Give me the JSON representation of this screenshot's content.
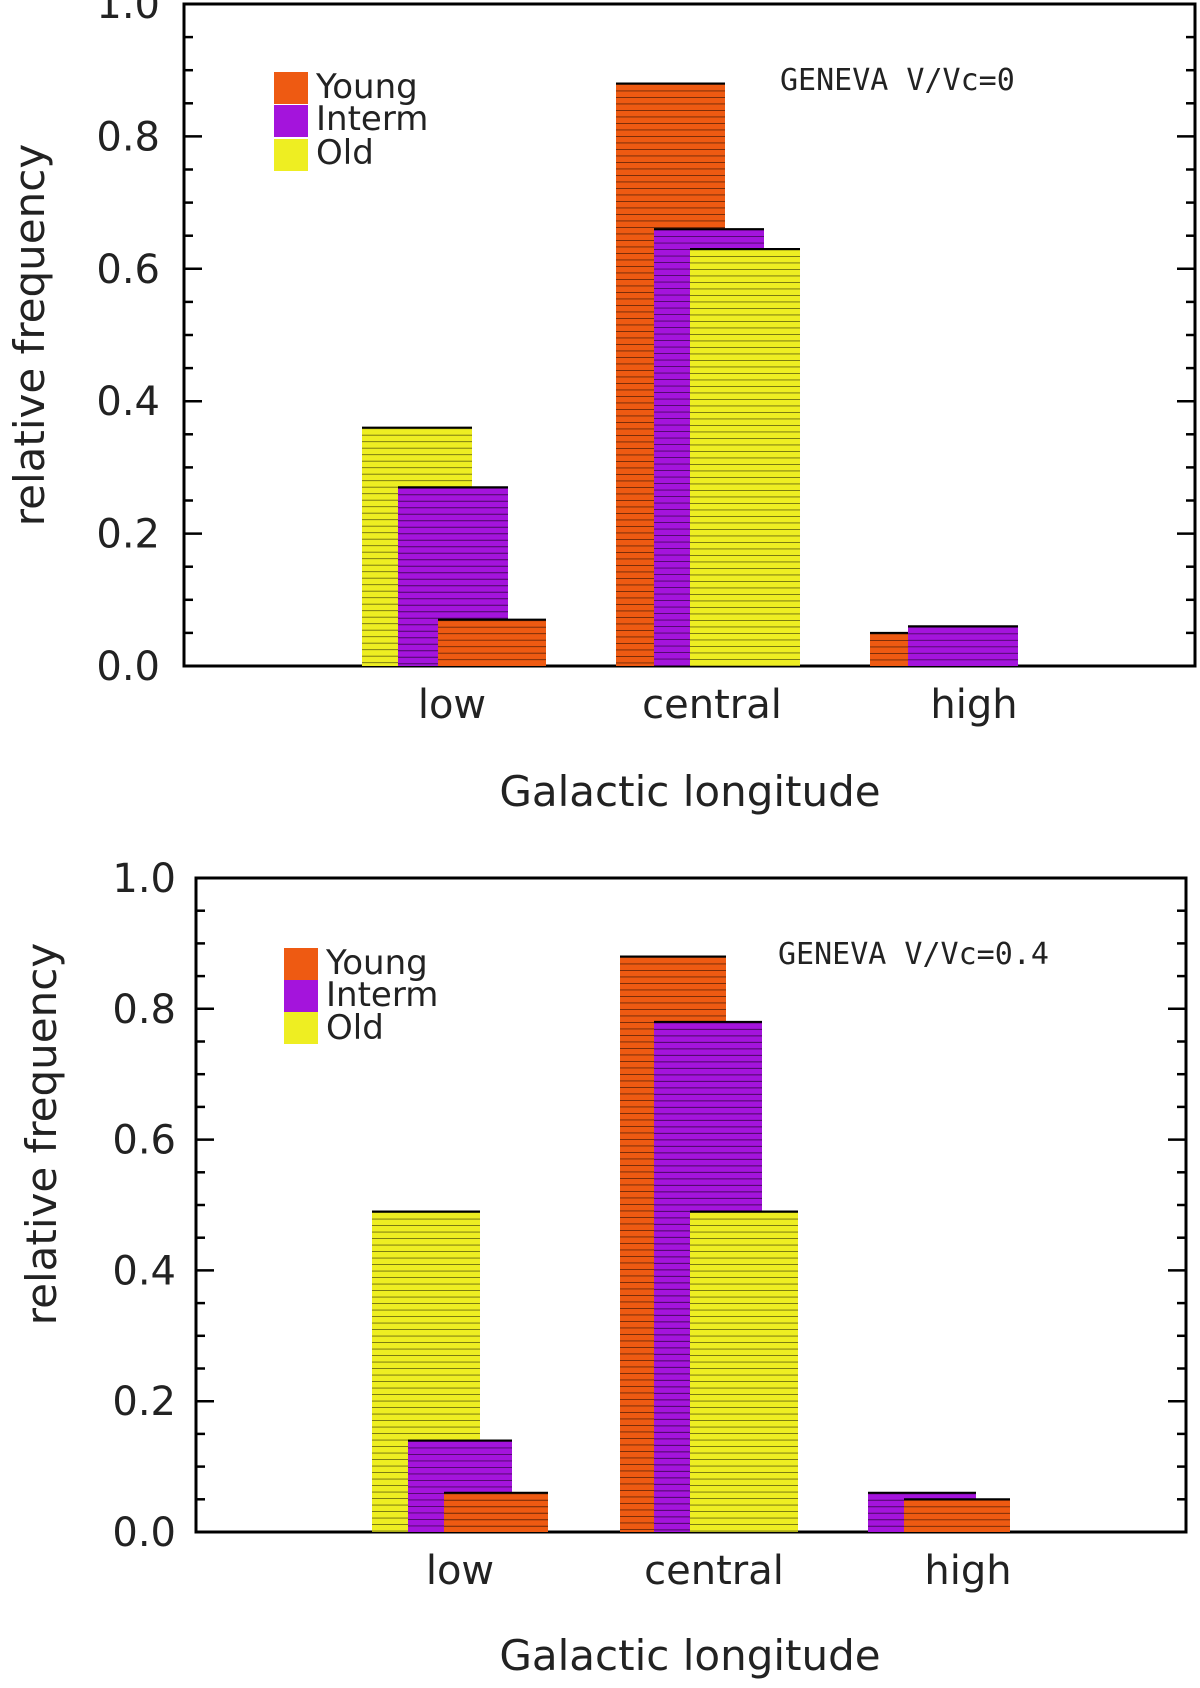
{
  "chart_data": [
    {
      "type": "bar",
      "annotation": "GENEVA V/Vc=0",
      "xlabel": "Galactic longitude",
      "ylabel": "relative frequency",
      "ylim": [
        0,
        1.0
      ],
      "yticks": [
        "0.0",
        "0.2",
        "0.4",
        "0.6",
        "0.8",
        "1.0"
      ],
      "categories": [
        "low",
        "central",
        "high"
      ],
      "series": [
        {
          "name": "Young",
          "color": "#ee5a12",
          "values": [
            0.07,
            0.88,
            0.05
          ]
        },
        {
          "name": "Interm",
          "color": "#a414dc",
          "values": [
            0.27,
            0.66,
            0.06
          ]
        },
        {
          "name": "Old",
          "color": "#eeee22",
          "values": [
            0.36,
            0.63,
            0.0
          ]
        }
      ]
    },
    {
      "type": "bar",
      "annotation": "GENEVA V/Vc=0.4",
      "xlabel": "Galactic longitude",
      "ylabel": "relative frequency",
      "ylim": [
        0,
        1.0
      ],
      "yticks": [
        "0.0",
        "0.2",
        "0.4",
        "0.6",
        "0.8",
        "1.0"
      ],
      "categories": [
        "low",
        "central",
        "high"
      ],
      "series": [
        {
          "name": "Young",
          "color": "#ee5a12",
          "values": [
            0.06,
            0.88,
            0.05
          ]
        },
        {
          "name": "Interm",
          "color": "#a414dc",
          "values": [
            0.14,
            0.78,
            0.06
          ]
        },
        {
          "name": "Old",
          "color": "#eeee22",
          "values": [
            0.49,
            0.49,
            0.0
          ]
        }
      ]
    }
  ]
}
